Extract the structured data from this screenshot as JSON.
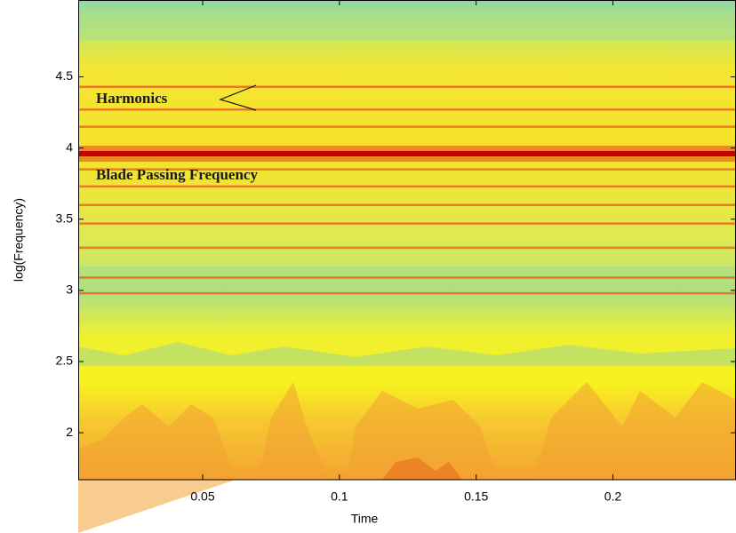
{
  "chart_data": {
    "type": "spectrogram",
    "xlabel": "Time",
    "ylabel": "log(Frequency)",
    "xlim": [
      0.0045,
      0.245
    ],
    "ylim": [
      1.67,
      5.04
    ],
    "xticks": [
      0.05,
      0.1,
      0.15,
      0.2
    ],
    "yticks": [
      2,
      2.5,
      3,
      3.5,
      4,
      4.5
    ],
    "main_band": 3.96,
    "main_band_color": "#c40000",
    "harmonic_bands": [
      4.43,
      4.27,
      4.15,
      3.85,
      3.73,
      3.6,
      3.47,
      3.3,
      3.09,
      2.98
    ],
    "harmonic_color": "#e8641e",
    "annotations": [
      "Harmonics",
      "Blade Passing Frequency"
    ]
  }
}
